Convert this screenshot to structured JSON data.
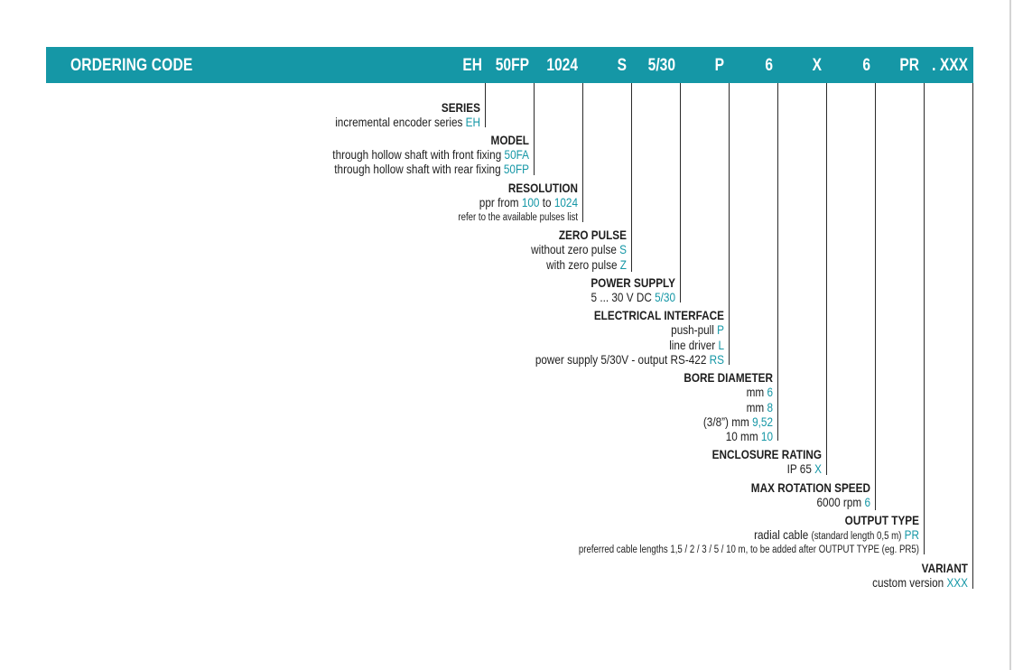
{
  "header": {
    "title": "ORDERING CODE",
    "codes": [
      "EH",
      "50FP",
      "1024",
      "S",
      "5/30",
      "P",
      "6",
      "X",
      "6",
      "PR",
      ". XXX"
    ]
  },
  "sections": {
    "series": {
      "title": "SERIES",
      "l1_text": "incremental encoder series ",
      "l1_val": "EH"
    },
    "model": {
      "title": "MODEL",
      "l1_text": "through hollow shaft with front fixing ",
      "l1_val": "50FA",
      "l2_text": "through hollow shaft with rear fixing ",
      "l2_val": "50FP"
    },
    "resolution": {
      "title": "RESOLUTION",
      "l1_a": "ppr from ",
      "l1_v1": "100",
      "l1_b": " to ",
      "l1_v2": "1024",
      "note": "refer to the available pulses list"
    },
    "zero_pulse": {
      "title": "ZERO PULSE",
      "l1_text": "without zero pulse ",
      "l1_val": "S",
      "l2_text": "with zero pulse ",
      "l2_val": "Z"
    },
    "power_supply": {
      "title": "POWER SUPPLY",
      "l1_text": "5 ... 30 V DC ",
      "l1_val": "5/30"
    },
    "electrical_interface": {
      "title": "ELECTRICAL INTERFACE",
      "l1_text": "push-pull ",
      "l1_val": "P",
      "l2_text": "line driver ",
      "l2_val": "L",
      "l3_text": "power supply 5/30V - output RS-422 ",
      "l3_val": "RS"
    },
    "bore_diameter": {
      "title": "BORE DIAMETER",
      "l1_text": "mm ",
      "l1_val": "6",
      "l2_text": "mm ",
      "l2_val": "8",
      "l3_text": "(3/8”) mm ",
      "l3_val": "9,52",
      "l4_text": "10 mm ",
      "l4_val": "10"
    },
    "enclosure_rating": {
      "title": "ENCLOSURE RATING",
      "l1_text": "IP 65 ",
      "l1_val": "X"
    },
    "max_rotation_speed": {
      "title": "MAX ROTATION SPEED",
      "l1_text": "6000 rpm ",
      "l1_val": "6"
    },
    "output_type": {
      "title": "OUTPUT TYPE",
      "l1_a": "radial cable ",
      "l1_small": "(standard length 0,5 m)",
      "l1_b": " ",
      "l1_val": "PR",
      "note": "preferred cable lengths 1,5 / 2 / 3 / 5 / 10 m, to be added after OUTPUT TYPE (eg. PR5)"
    },
    "variant": {
      "title": "VARIANT",
      "l1_text": "custom version ",
      "l1_val": "XXX"
    }
  },
  "colors": {
    "accent": "#1597a6",
    "text": "#1e1e1e",
    "line": "#2a2a2a"
  }
}
